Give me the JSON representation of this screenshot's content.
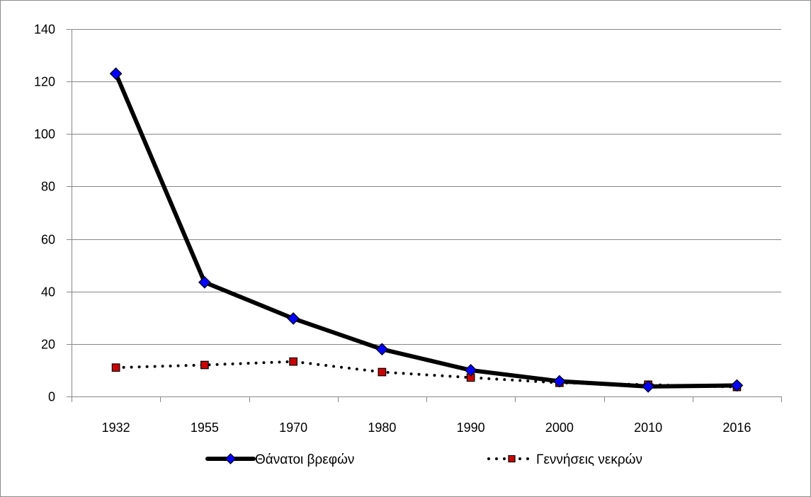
{
  "chart_data": {
    "type": "line",
    "title": "",
    "xlabel": "",
    "ylabel": "",
    "categories": [
      "1932",
      "1955",
      "1970",
      "1980",
      "1990",
      "2000",
      "2010",
      "2016"
    ],
    "ylim": [
      0,
      140
    ],
    "yticks": [
      0,
      20,
      40,
      60,
      80,
      100,
      120,
      140
    ],
    "grid": true,
    "legend": "bottom",
    "series": [
      {
        "name": "Θάνατοι βρεφών",
        "values": [
          123,
          43.5,
          29.7,
          18,
          10,
          5.8,
          3.8,
          4.2
        ],
        "line_color": "#000000",
        "marker_color": "#0000ff",
        "line_style": "solid",
        "marker": "diamond"
      },
      {
        "name": "Γεννήσεις νεκρών",
        "values": [
          11,
          12,
          13.3,
          9.3,
          7.2,
          5.2,
          4.5,
          3.6
        ],
        "line_color": "#000000",
        "marker_color": "#cc0000",
        "line_style": "dotted",
        "marker": "square"
      }
    ]
  }
}
